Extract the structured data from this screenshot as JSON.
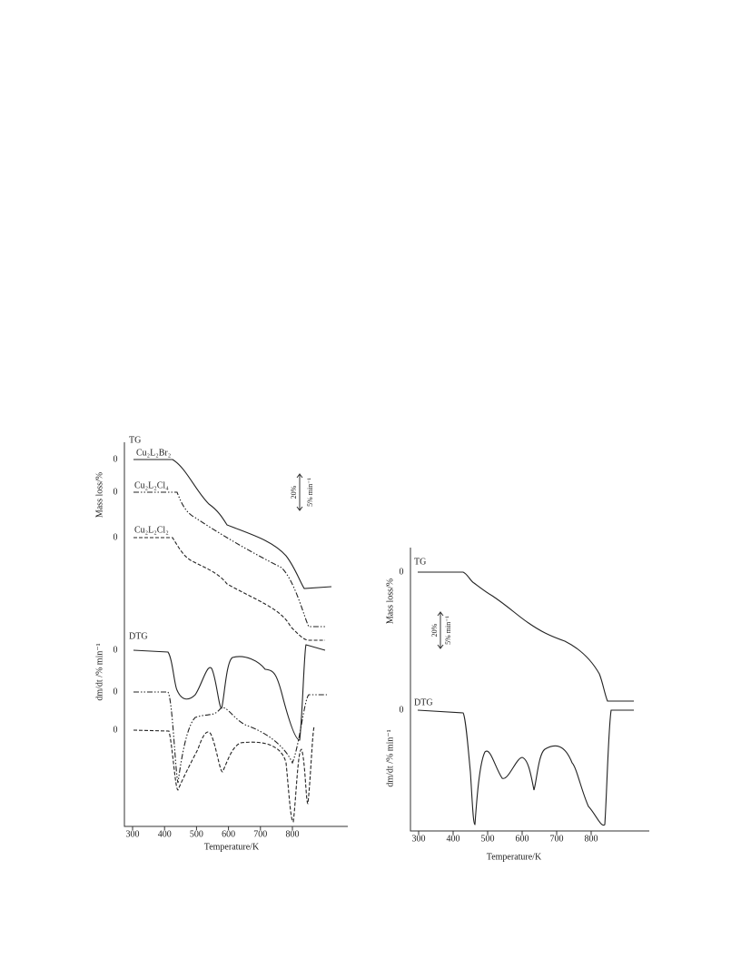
{
  "figures": [
    {
      "tg_label": "TG",
      "dtg_label": "DTG",
      "y_label_tg": "Mass loss/%",
      "y_label_dtg": "dm/dt /% min⁻¹",
      "x_label": "Temperature/K",
      "x_ticks": [
        300,
        400,
        500,
        600,
        700,
        800
      ],
      "zero_labels": [
        0,
        0,
        0,
        0,
        0,
        0
      ],
      "scale_bar": [
        "20%",
        "5% min⁻¹"
      ],
      "compounds": [
        "Cu₂L₂Br₂",
        "Cu₂L₂Cl₄",
        "Cu₂L₂Cl₂"
      ]
    },
    {
      "tg_label": "TG",
      "dtg_label": "DTG",
      "y_label_tg": "Mass loss/%",
      "y_label_dtg": "dm/dt /% min⁻¹",
      "x_label": "Temperature/K",
      "x_ticks": [
        300,
        400,
        500,
        600,
        700,
        800
      ],
      "zero_labels": [
        0,
        0
      ],
      "scale_bar": [
        "20%",
        "5% min⁻¹"
      ]
    }
  ]
}
